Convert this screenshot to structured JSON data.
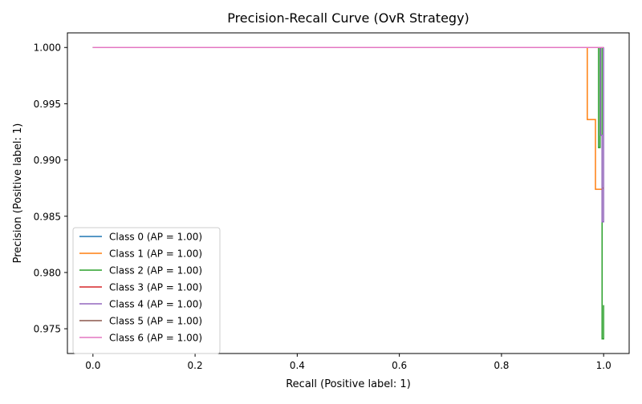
{
  "chart_data": {
    "type": "line",
    "step": true,
    "title": "Precision-Recall Curve (OvR Strategy)",
    "xlabel": "Recall (Positive label: 1)",
    "ylabel": "Precision (Positive label: 1)",
    "xlim": [
      -0.05,
      1.05
    ],
    "ylim": [
      0.9728,
      1.0013
    ],
    "xticks": [
      0.0,
      0.2,
      0.4,
      0.6,
      0.8,
      1.0
    ],
    "xtick_labels": [
      "0.0",
      "0.2",
      "0.4",
      "0.6",
      "0.8",
      "1.0"
    ],
    "yticks": [
      0.975,
      0.98,
      0.985,
      0.99,
      0.995,
      1.0
    ],
    "ytick_labels": [
      "0.975",
      "0.980",
      "0.985",
      "0.990",
      "0.995",
      "1.000"
    ],
    "grid": false,
    "legend_position": "lower-left",
    "series": [
      {
        "name": "Class 0 (AP = 1.00)",
        "color": "#1f77b4",
        "x": [
          0.0,
          1.0,
          1.0
        ],
        "y": [
          1.0,
          1.0,
          1.0
        ]
      },
      {
        "name": "Class 1 (AP = 1.00)",
        "color": "#ff7f0e",
        "x": [
          0.0,
          0.968,
          0.968,
          0.984,
          0.984,
          0.997,
          0.997,
          1.0
        ],
        "y": [
          1.0,
          1.0,
          0.9936,
          0.9936,
          0.9874,
          0.9874,
          0.9875,
          0.9875
        ]
      },
      {
        "name": "Class 2 (AP = 1.00)",
        "color": "#2ca02c",
        "x": [
          0.0,
          0.99,
          0.99,
          0.993,
          0.993,
          0.997,
          0.997,
          1.0,
          1.0
        ],
        "y": [
          1.0,
          1.0,
          0.9911,
          0.9911,
          1.0,
          1.0,
          0.9741,
          0.9741,
          0.9771
        ]
      },
      {
        "name": "Class 3 (AP = 1.00)",
        "color": "#d62728",
        "x": [
          0.0,
          1.0
        ],
        "y": [
          1.0,
          1.0
        ]
      },
      {
        "name": "Class 4 (AP = 1.00)",
        "color": "#9467bd",
        "x": [
          0.0,
          0.994,
          0.994,
          0.997,
          0.997,
          1.0,
          1.0
        ],
        "y": [
          1.0,
          1.0,
          0.9922,
          0.9922,
          0.9845,
          0.9845,
          1.0
        ]
      },
      {
        "name": "Class 5 (AP = 1.00)",
        "color": "#8c564b",
        "x": [
          0.0,
          1.0
        ],
        "y": [
          1.0,
          1.0
        ]
      },
      {
        "name": "Class 6 (AP = 1.00)",
        "color": "#e377c2",
        "x": [
          0.0,
          1.0
        ],
        "y": [
          1.0,
          1.0
        ]
      }
    ]
  }
}
